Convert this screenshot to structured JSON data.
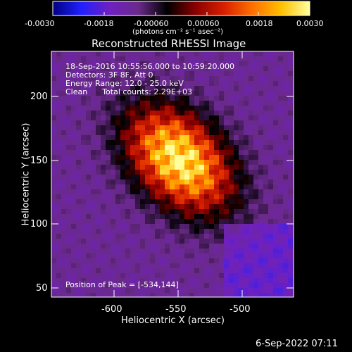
{
  "chart_data": {
    "type": "heatmap",
    "title": "Reconstructed RHESSI Image",
    "xlabel": "Heliocentric X (arcsec)",
    "ylabel": "Heliocentric Y (arcsec)",
    "xlim": [
      -646,
      -534
    ],
    "ylim": [
      46,
      226
    ],
    "x_ticks": [
      "-600",
      "-550",
      "-500"
    ],
    "y_ticks": [
      "50",
      "100",
      "150",
      "200"
    ],
    "colorbar": {
      "range": [
        -0.003,
        0.003
      ],
      "ticks": [
        "-0.0030",
        "-0.0018",
        "-0.00060",
        "0.00060",
        "0.0018",
        "0.0030"
      ],
      "units": "(photons cm⁻² s⁻¹ asec⁻²)",
      "colormap": [
        "#000080",
        "#2020ff",
        "#7020c0",
        "#6a2a8a",
        "#000000",
        "#8a0000",
        "#d82000",
        "#ff7000",
        "#ffc000",
        "#ffffa0"
      ]
    },
    "peak_position": [
      -534,
      144
    ],
    "peak_value": 0.003,
    "annotations": {
      "time": "18-Sep-2016 10:55:56.000 to 10:59:20.000",
      "detectors": "Detectors: 3F 8F, Att 0",
      "energy": "Energy Range: 12.0 - 25.0 keV",
      "clean": "Clean      Total counts: 2.29E+03",
      "peak": "Position of Peak = [-534,144]"
    },
    "timestamp": "6-Sep-2022 07:11"
  }
}
